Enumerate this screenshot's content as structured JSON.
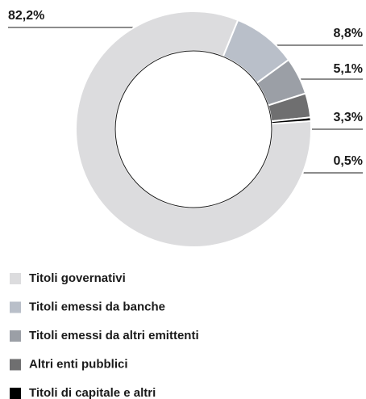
{
  "chart_data": {
    "type": "donut",
    "categories": [
      "Titoli governativi",
      "Titoli emessi da banche",
      "Titoli emessi da altri emittenti",
      "Altri enti pubblici",
      "Titoli di capitale e altri"
    ],
    "values": [
      82.2,
      8.8,
      5.1,
      3.3,
      0.5
    ],
    "value_labels": [
      "82,2%",
      "8,8%",
      "5,1%",
      "3,3%",
      "0,5%"
    ],
    "colors": [
      "#dcdcde",
      "#b9bfc9",
      "#9b9fa6",
      "#6f6f70",
      "#000000"
    ],
    "legend": "bottom"
  }
}
